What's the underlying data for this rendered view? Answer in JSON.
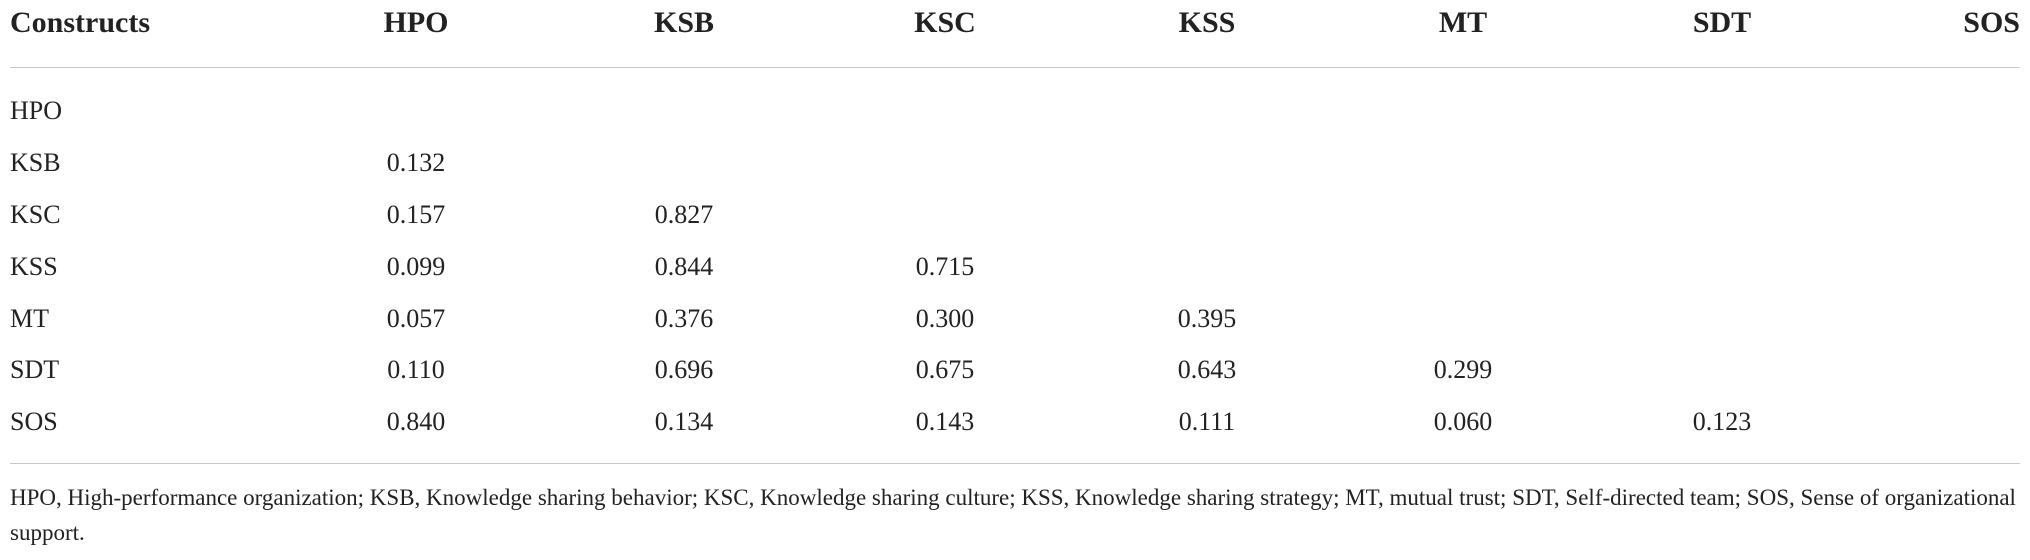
{
  "table": {
    "columns": [
      "Constructs",
      "HPO",
      "KSB",
      "KSC",
      "KSS",
      "MT",
      "SDT",
      "SOS"
    ],
    "rows": [
      {
        "label": "HPO",
        "values": []
      },
      {
        "label": "KSB",
        "values": [
          "0.132"
        ]
      },
      {
        "label": "KSC",
        "values": [
          "0.157",
          "0.827"
        ]
      },
      {
        "label": "KSS",
        "values": [
          "0.099",
          "0.844",
          "0.715"
        ]
      },
      {
        "label": "MT",
        "values": [
          "0.057",
          "0.376",
          "0.300",
          "0.395"
        ]
      },
      {
        "label": "SDT",
        "values": [
          "0.110",
          "0.696",
          "0.675",
          "0.643",
          "0.299"
        ]
      },
      {
        "label": "SOS",
        "values": [
          "0.840",
          "0.134",
          "0.143",
          "0.111",
          "0.060",
          "0.123"
        ]
      }
    ],
    "footnote": "HPO, High-performance organization; KSB, Knowledge sharing behavior; KSC, Knowledge sharing culture; KSS, Knowledge sharing strategy; MT, mutual trust; SDT, Self-directed team; SOS, Sense of organizational support."
  }
}
